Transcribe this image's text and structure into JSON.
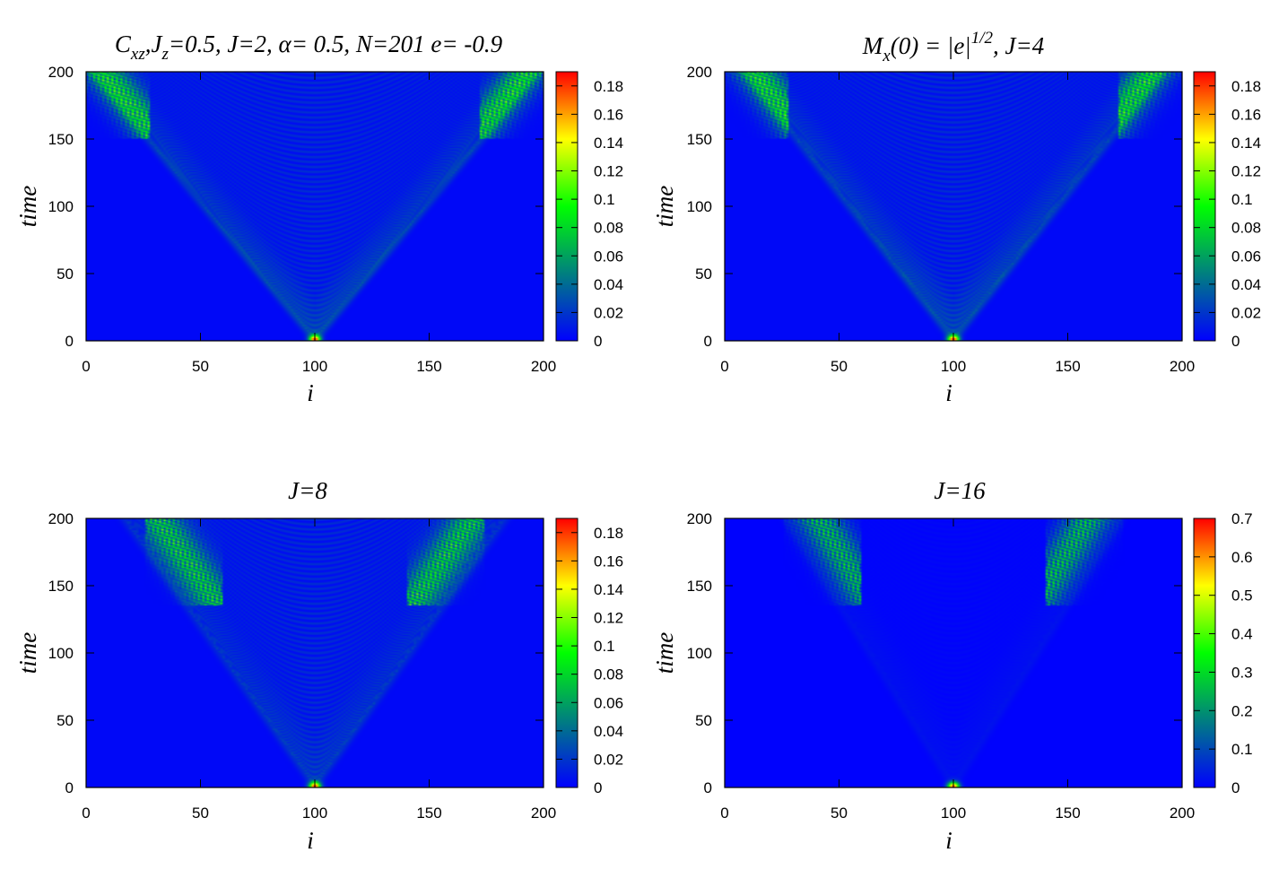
{
  "chart_data": [
    {
      "type": "heatmap",
      "title": {
        "c": "C",
        "c_sub": "xz",
        "sep": ",",
        "j": "J",
        "j_sub": "z",
        "rest": "=0.5,  J=2, α= 0.5, N=201 e= -0.9"
      },
      "xlabel": "i",
      "ylabel": "time",
      "xlim": [
        0,
        200
      ],
      "ylim": [
        0,
        200
      ],
      "x_ticks": [
        "0",
        "50",
        "100",
        "150",
        "200"
      ],
      "y_ticks": [
        "0",
        "50",
        "100",
        "150",
        "200"
      ],
      "colorbar_ticks": [
        "0",
        "0.02",
        "0.04",
        "0.06",
        "0.08",
        "0.1",
        "0.12",
        "0.14",
        "0.16",
        "0.18"
      ],
      "colorbar_range": [
        0,
        0.19
      ],
      "J": 2,
      "light_cone_speed": 0.49,
      "peak_value": 0.19
    },
    {
      "type": "heatmap",
      "title": {
        "m": "M",
        "m_sub": "x",
        "mid": "(0) = |e|",
        "sup": "1/2",
        "rest": ",  J=4"
      },
      "xlabel": "i",
      "ylabel": "time",
      "xlim": [
        0,
        200
      ],
      "ylim": [
        0,
        200
      ],
      "x_ticks": [
        "0",
        "50",
        "100",
        "150",
        "200"
      ],
      "y_ticks": [
        "0",
        "50",
        "100",
        "150",
        "200"
      ],
      "colorbar_ticks": [
        "0",
        "0.02",
        "0.04",
        "0.06",
        "0.08",
        "0.1",
        "0.12",
        "0.14",
        "0.16",
        "0.18"
      ],
      "colorbar_range": [
        0,
        0.19
      ],
      "J": 4,
      "light_cone_speed": 0.46,
      "peak_value": 0.19
    },
    {
      "type": "heatmap",
      "title": {
        "text": "J=8"
      },
      "xlabel": "i",
      "ylabel": "time",
      "xlim": [
        0,
        200
      ],
      "ylim": [
        0,
        200
      ],
      "x_ticks": [
        "0",
        "50",
        "100",
        "150",
        "200"
      ],
      "y_ticks": [
        "0",
        "50",
        "100",
        "150",
        "200"
      ],
      "colorbar_ticks": [
        "0",
        "0.02",
        "0.04",
        "0.06",
        "0.08",
        "0.1",
        "0.12",
        "0.14",
        "0.16",
        "0.18"
      ],
      "colorbar_range": [
        0,
        0.19
      ],
      "J": 8,
      "light_cone_speed": 0.42,
      "peak_value": 0.19
    },
    {
      "type": "heatmap",
      "title": {
        "text": "J=16"
      },
      "xlabel": "i",
      "ylabel": "time",
      "xlim": [
        0,
        200
      ],
      "ylim": [
        0,
        200
      ],
      "x_ticks": [
        "0",
        "50",
        "100",
        "150",
        "200"
      ],
      "y_ticks": [
        "0",
        "50",
        "100",
        "150",
        "200"
      ],
      "colorbar_ticks": [
        "0",
        "0.1",
        "0.2",
        "0.3",
        "0.4",
        "0.5",
        "0.6",
        "0.7"
      ],
      "colorbar_range": [
        0,
        0.7
      ],
      "J": 16,
      "light_cone_speed": 0.37,
      "peak_value": 0.7
    }
  ],
  "colormap": [
    "#0000ff",
    "#00ff00",
    "#ffff00",
    "#ff0000"
  ]
}
